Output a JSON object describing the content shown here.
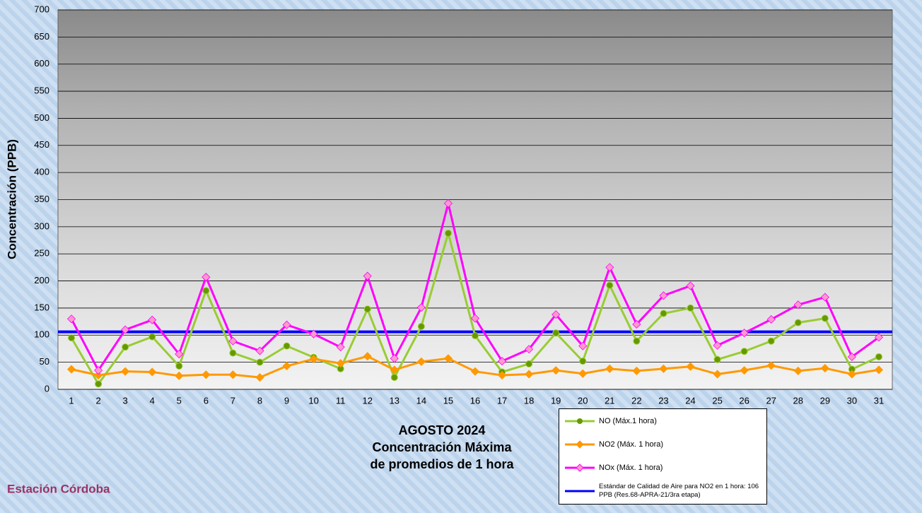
{
  "chart_data": {
    "type": "line",
    "title_lines": [
      "AGOSTO 2024",
      "Concentración Máxima",
      "de promedios de 1 hora"
    ],
    "station": "Estación Córdoba",
    "y_label": "Concentración  (PPB)",
    "categories": [
      "1",
      "2",
      "3",
      "4",
      "5",
      "6",
      "7",
      "8",
      "9",
      "10",
      "11",
      "12",
      "13",
      "14",
      "15",
      "16",
      "17",
      "18",
      "19",
      "20",
      "21",
      "22",
      "23",
      "24",
      "25",
      "26",
      "27",
      "28",
      "29",
      "30",
      "31"
    ],
    "ylim": [
      0,
      700
    ],
    "yticks": [
      0,
      50,
      100,
      150,
      200,
      250,
      300,
      350,
      400,
      450,
      500,
      550,
      600,
      650,
      700
    ],
    "grid": true,
    "series": [
      {
        "name": "NO (Máx.1 hora)",
        "color": "#99cc33",
        "marker": "circle",
        "marker_color": "#669900",
        "values": [
          95,
          10,
          78,
          97,
          43,
          182,
          67,
          50,
          80,
          59,
          38,
          148,
          22,
          116,
          288,
          99,
          32,
          47,
          104,
          52,
          192,
          89,
          140,
          150,
          55,
          70,
          89,
          123,
          131,
          37,
          60
        ]
      },
      {
        "name": "NO2 (Máx. 1 hora)",
        "color": "#ff9900",
        "marker": "diamond",
        "marker_color": "#ff9900",
        "values": [
          37,
          26,
          33,
          32,
          25,
          27,
          27,
          22,
          43,
          56,
          48,
          61,
          36,
          51,
          57,
          33,
          26,
          28,
          35,
          29,
          38,
          34,
          38,
          42,
          28,
          35,
          44,
          34,
          39,
          28,
          36
        ]
      },
      {
        "name": "NOx (Máx. 1 hora)",
        "color": "#ff00ff",
        "marker": "diamond",
        "marker_color": "#ff99cc",
        "values": [
          130,
          35,
          110,
          128,
          65,
          207,
          89,
          71,
          119,
          102,
          78,
          209,
          57,
          151,
          343,
          131,
          52,
          74,
          138,
          80,
          225,
          120,
          173,
          191,
          81,
          104,
          129,
          156,
          170,
          60,
          96
        ]
      },
      {
        "name": "Estándar de Calidad de Aire para NO2 en 1 hora: 106 PPB (Res.68-APRA-21/3ra etapa)",
        "color": "#0000ff",
        "marker": "none",
        "marker_color": "#0000ff",
        "values": [
          106,
          106,
          106,
          106,
          106,
          106,
          106,
          106,
          106,
          106,
          106,
          106,
          106,
          106,
          106,
          106,
          106,
          106,
          106,
          106,
          106,
          106,
          106,
          106,
          106,
          106,
          106,
          106,
          106,
          106,
          106
        ]
      }
    ]
  }
}
